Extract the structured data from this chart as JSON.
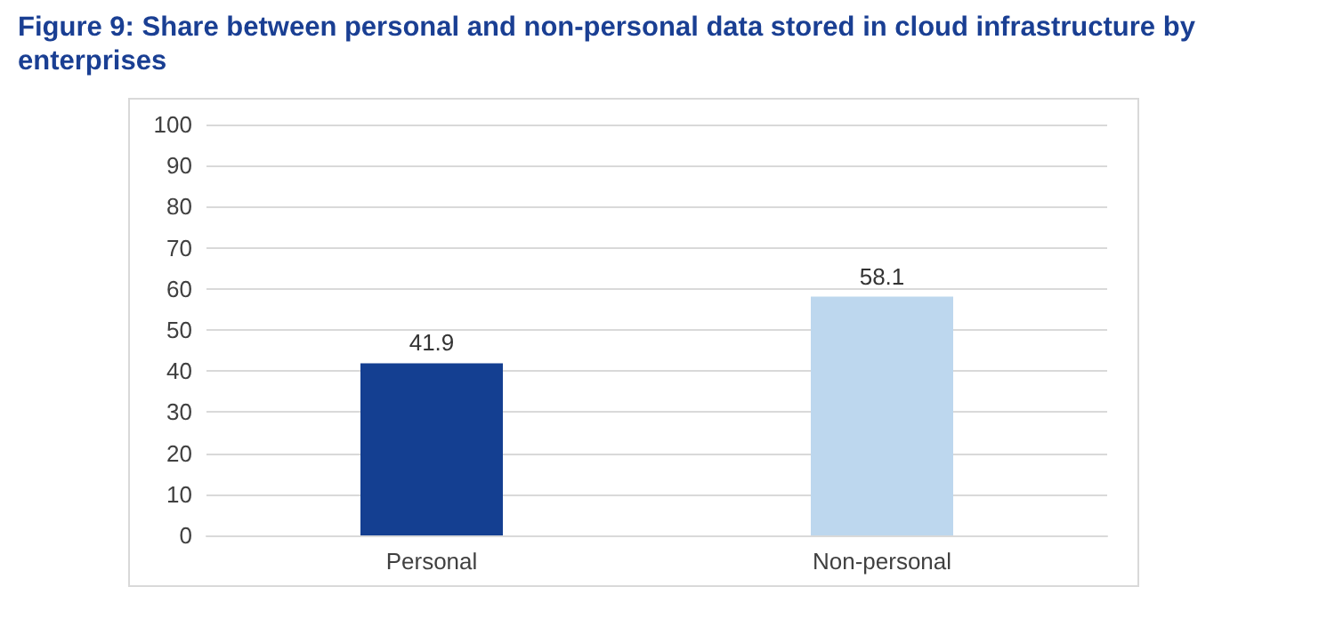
{
  "chart_data": {
    "type": "bar",
    "title": "Figure 9: Share between personal and non-personal data stored in cloud infrastructure by enterprises",
    "categories": [
      "Personal",
      "Non-personal"
    ],
    "values": [
      41.9,
      58.1
    ],
    "colors": [
      "#143f91",
      "#bdd7ee"
    ],
    "ylim": [
      0,
      100
    ],
    "yticks": [
      0,
      10,
      20,
      30,
      40,
      50,
      60,
      70,
      80,
      90,
      100
    ],
    "grid": "y",
    "data_labels": true
  }
}
